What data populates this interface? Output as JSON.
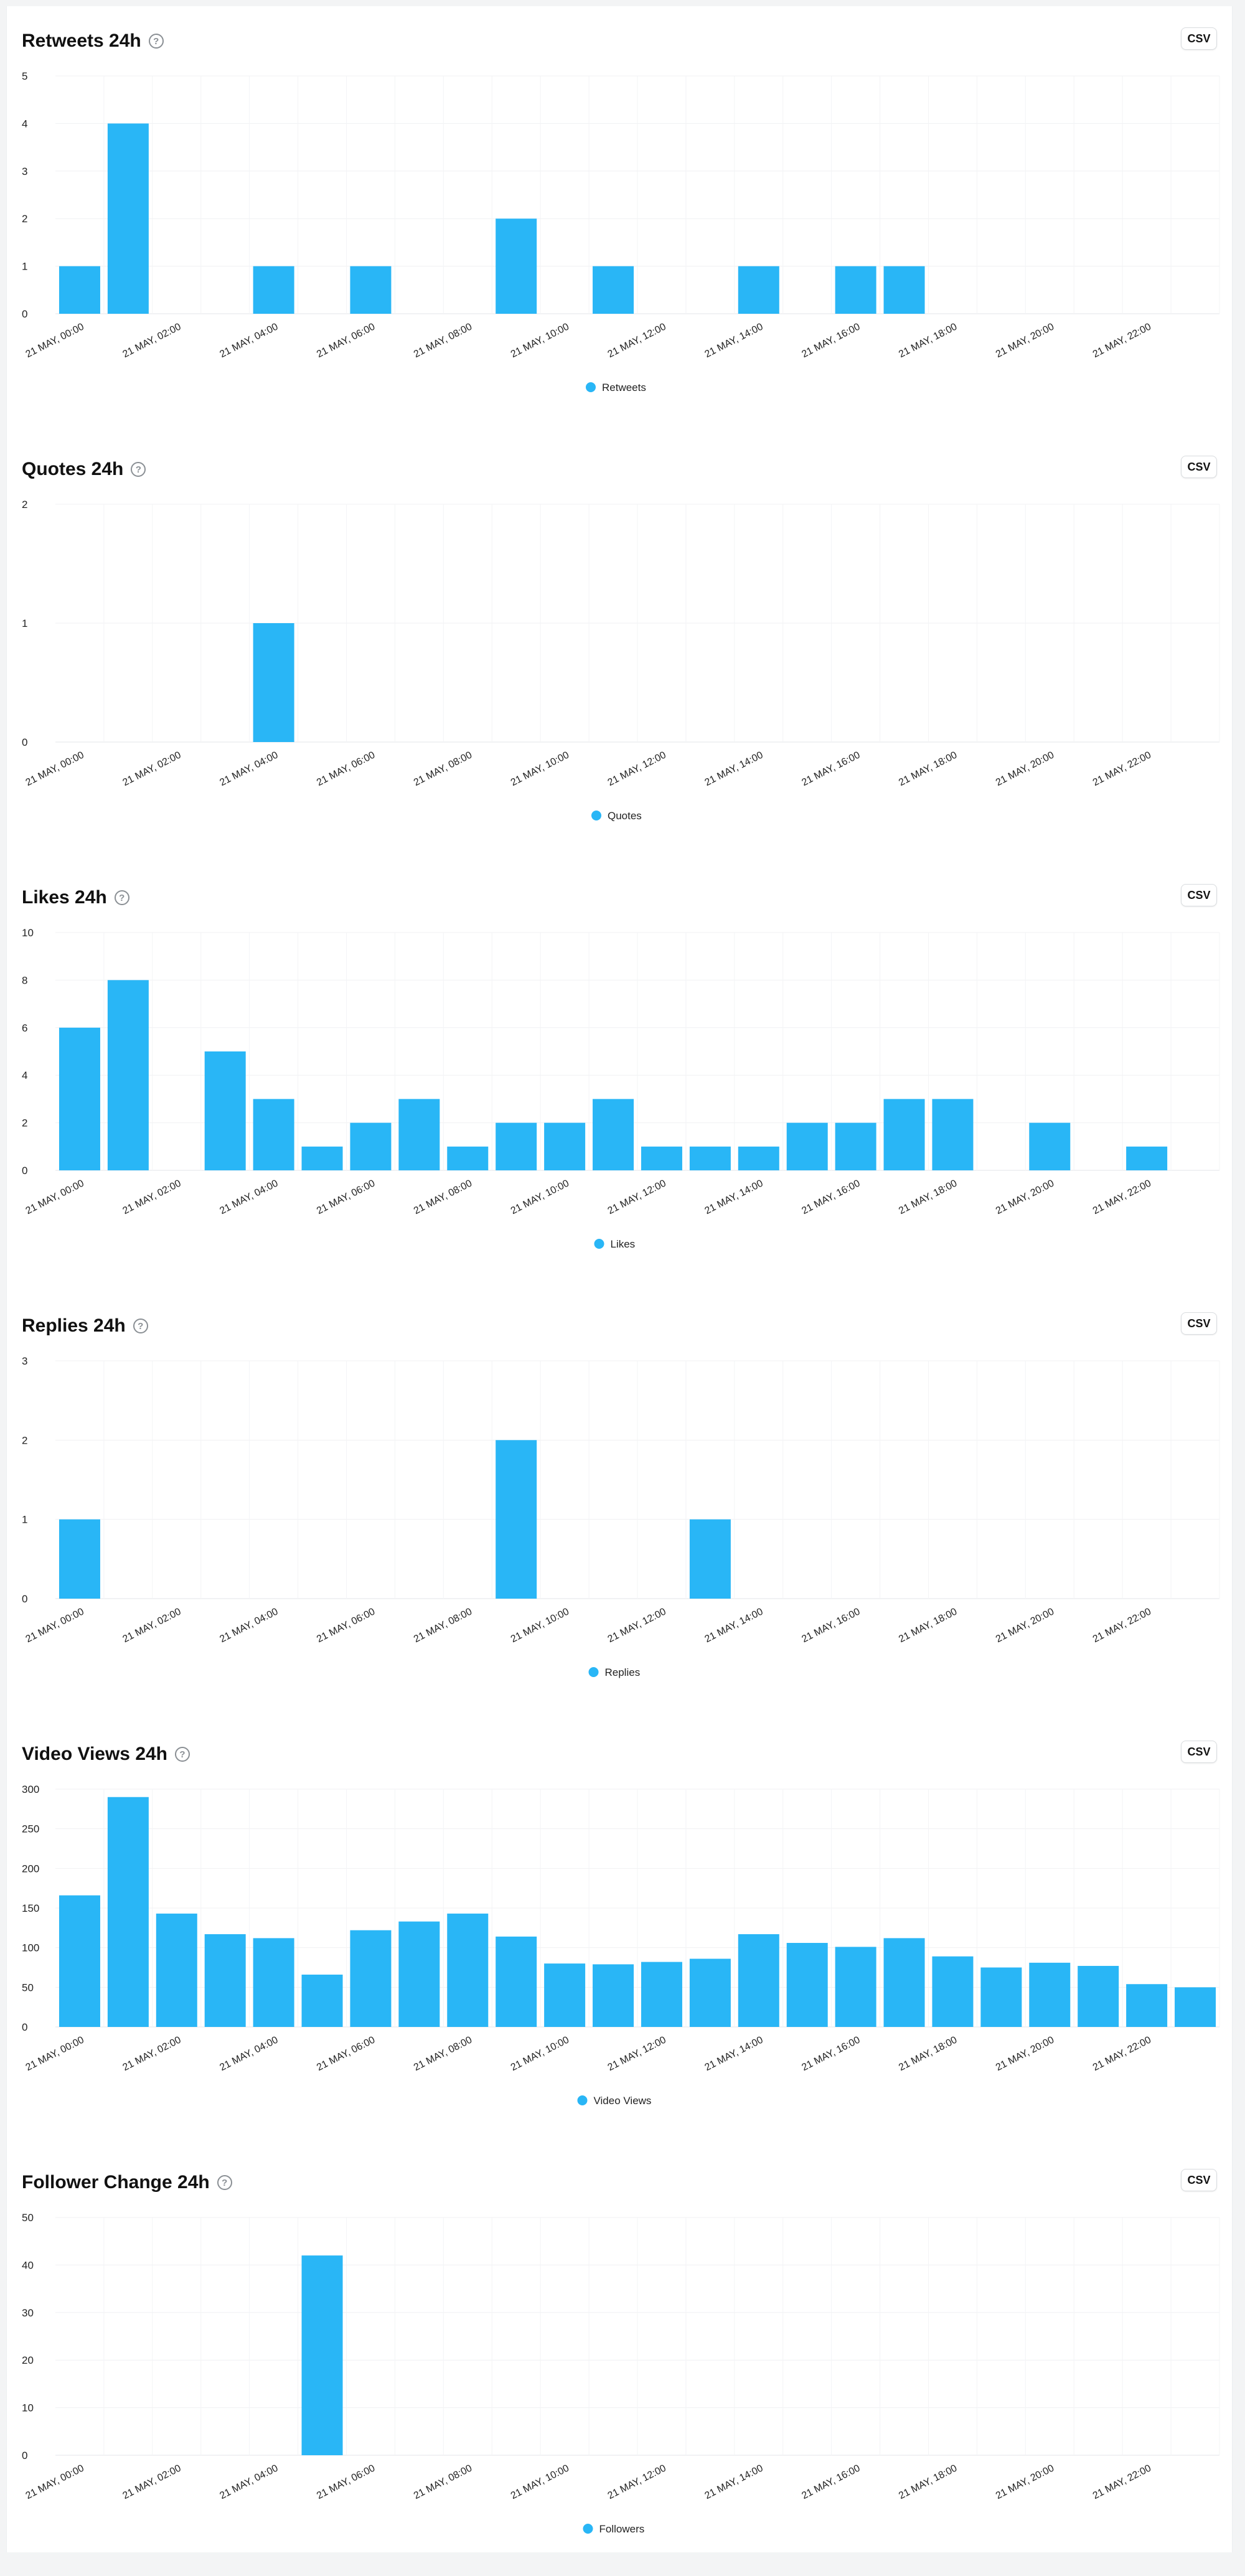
{
  "csv_label": "CSV",
  "chart_data": [
    {
      "type": "bar",
      "title": "Retweets 24h",
      "ylim": [
        0,
        5
      ],
      "yticks": [
        0,
        1,
        2,
        3,
        4,
        5
      ],
      "categories": [
        "21 MAY, 00:00",
        "21 MAY, 01:00",
        "21 MAY, 02:00",
        "21 MAY, 03:00",
        "21 MAY, 04:00",
        "21 MAY, 05:00",
        "21 MAY, 06:00",
        "21 MAY, 07:00",
        "21 MAY, 08:00",
        "21 MAY, 09:00",
        "21 MAY, 10:00",
        "21 MAY, 11:00",
        "21 MAY, 12:00",
        "21 MAY, 13:00",
        "21 MAY, 14:00",
        "21 MAY, 15:00",
        "21 MAY, 16:00",
        "21 MAY, 17:00",
        "21 MAY, 18:00",
        "21 MAY, 19:00",
        "21 MAY, 20:00",
        "21 MAY, 21:00",
        "21 MAY, 22:00",
        "21 MAY, 23:00"
      ],
      "series": [
        {
          "name": "Retweets",
          "values": [
            1,
            4,
            0,
            0,
            1,
            0,
            1,
            0,
            0,
            2,
            0,
            1,
            0,
            0,
            1,
            0,
            1,
            1,
            0,
            0,
            0,
            0,
            0,
            0
          ]
        }
      ],
      "tick_labels": [
        "21 MAY, 00:00",
        "21 MAY, 02:00",
        "21 MAY, 04:00",
        "21 MAY, 06:00",
        "21 MAY, 08:00",
        "21 MAY, 10:00",
        "21 MAY, 12:00",
        "21 MAY, 14:00",
        "21 MAY, 16:00",
        "21 MAY, 18:00",
        "21 MAY, 20:00",
        "21 MAY, 22:00"
      ],
      "legend_position": "bottom",
      "grid": true,
      "color": "#29b6f6"
    },
    {
      "type": "bar",
      "title": "Quotes 24h",
      "ylim": [
        0,
        2
      ],
      "yticks": [
        0,
        1,
        2
      ],
      "categories": [
        "21 MAY, 00:00",
        "21 MAY, 01:00",
        "21 MAY, 02:00",
        "21 MAY, 03:00",
        "21 MAY, 04:00",
        "21 MAY, 05:00",
        "21 MAY, 06:00",
        "21 MAY, 07:00",
        "21 MAY, 08:00",
        "21 MAY, 09:00",
        "21 MAY, 10:00",
        "21 MAY, 11:00",
        "21 MAY, 12:00",
        "21 MAY, 13:00",
        "21 MAY, 14:00",
        "21 MAY, 15:00",
        "21 MAY, 16:00",
        "21 MAY, 17:00",
        "21 MAY, 18:00",
        "21 MAY, 19:00",
        "21 MAY, 20:00",
        "21 MAY, 21:00",
        "21 MAY, 22:00",
        "21 MAY, 23:00"
      ],
      "series": [
        {
          "name": "Quotes",
          "values": [
            0,
            0,
            0,
            0,
            1,
            0,
            0,
            0,
            0,
            0,
            0,
            0,
            0,
            0,
            0,
            0,
            0,
            0,
            0,
            0,
            0,
            0,
            0,
            0
          ]
        }
      ],
      "tick_labels": [
        "21 MAY, 00:00",
        "21 MAY, 02:00",
        "21 MAY, 04:00",
        "21 MAY, 06:00",
        "21 MAY, 08:00",
        "21 MAY, 10:00",
        "21 MAY, 12:00",
        "21 MAY, 14:00",
        "21 MAY, 16:00",
        "21 MAY, 18:00",
        "21 MAY, 20:00",
        "21 MAY, 22:00"
      ],
      "legend_position": "bottom",
      "grid": true,
      "color": "#29b6f6"
    },
    {
      "type": "bar",
      "title": "Likes 24h",
      "ylim": [
        0,
        10
      ],
      "yticks": [
        0,
        2,
        4,
        6,
        8,
        10
      ],
      "categories": [
        "21 MAY, 00:00",
        "21 MAY, 01:00",
        "21 MAY, 02:00",
        "21 MAY, 03:00",
        "21 MAY, 04:00",
        "21 MAY, 05:00",
        "21 MAY, 06:00",
        "21 MAY, 07:00",
        "21 MAY, 08:00",
        "21 MAY, 09:00",
        "21 MAY, 10:00",
        "21 MAY, 11:00",
        "21 MAY, 12:00",
        "21 MAY, 13:00",
        "21 MAY, 14:00",
        "21 MAY, 15:00",
        "21 MAY, 16:00",
        "21 MAY, 17:00",
        "21 MAY, 18:00",
        "21 MAY, 19:00",
        "21 MAY, 20:00",
        "21 MAY, 21:00",
        "21 MAY, 22:00",
        "21 MAY, 23:00"
      ],
      "series": [
        {
          "name": "Likes",
          "values": [
            6,
            8,
            0,
            5,
            3,
            1,
            2,
            3,
            1,
            2,
            2,
            3,
            1,
            1,
            1,
            2,
            2,
            3,
            3,
            0,
            2,
            0,
            1,
            0
          ]
        }
      ],
      "tick_labels": [
        "21 MAY, 00:00",
        "21 MAY, 02:00",
        "21 MAY, 04:00",
        "21 MAY, 06:00",
        "21 MAY, 08:00",
        "21 MAY, 10:00",
        "21 MAY, 12:00",
        "21 MAY, 14:00",
        "21 MAY, 16:00",
        "21 MAY, 18:00",
        "21 MAY, 20:00",
        "21 MAY, 22:00"
      ],
      "legend_position": "bottom",
      "grid": true,
      "color": "#29b6f6"
    },
    {
      "type": "bar",
      "title": "Replies 24h",
      "ylim": [
        0,
        3
      ],
      "yticks": [
        0,
        1,
        2,
        3
      ],
      "categories": [
        "21 MAY, 00:00",
        "21 MAY, 01:00",
        "21 MAY, 02:00",
        "21 MAY, 03:00",
        "21 MAY, 04:00",
        "21 MAY, 05:00",
        "21 MAY, 06:00",
        "21 MAY, 07:00",
        "21 MAY, 08:00",
        "21 MAY, 09:00",
        "21 MAY, 10:00",
        "21 MAY, 11:00",
        "21 MAY, 12:00",
        "21 MAY, 13:00",
        "21 MAY, 14:00",
        "21 MAY, 15:00",
        "21 MAY, 16:00",
        "21 MAY, 17:00",
        "21 MAY, 18:00",
        "21 MAY, 19:00",
        "21 MAY, 20:00",
        "21 MAY, 21:00",
        "21 MAY, 22:00",
        "21 MAY, 23:00"
      ],
      "series": [
        {
          "name": "Replies",
          "values": [
            1,
            0,
            0,
            0,
            0,
            0,
            0,
            0,
            0,
            2,
            0,
            0,
            0,
            1,
            0,
            0,
            0,
            0,
            0,
            0,
            0,
            0,
            0,
            0
          ]
        }
      ],
      "tick_labels": [
        "21 MAY, 00:00",
        "21 MAY, 02:00",
        "21 MAY, 04:00",
        "21 MAY, 06:00",
        "21 MAY, 08:00",
        "21 MAY, 10:00",
        "21 MAY, 12:00",
        "21 MAY, 14:00",
        "21 MAY, 16:00",
        "21 MAY, 18:00",
        "21 MAY, 20:00",
        "21 MAY, 22:00"
      ],
      "legend_position": "bottom",
      "grid": true,
      "color": "#29b6f6"
    },
    {
      "type": "bar",
      "title": "Video Views 24h",
      "ylim": [
        0,
        300
      ],
      "yticks": [
        0,
        50,
        100,
        150,
        200,
        250,
        300
      ],
      "categories": [
        "21 MAY, 00:00",
        "21 MAY, 01:00",
        "21 MAY, 02:00",
        "21 MAY, 03:00",
        "21 MAY, 04:00",
        "21 MAY, 05:00",
        "21 MAY, 06:00",
        "21 MAY, 07:00",
        "21 MAY, 08:00",
        "21 MAY, 09:00",
        "21 MAY, 10:00",
        "21 MAY, 11:00",
        "21 MAY, 12:00",
        "21 MAY, 13:00",
        "21 MAY, 14:00",
        "21 MAY, 15:00",
        "21 MAY, 16:00",
        "21 MAY, 17:00",
        "21 MAY, 18:00",
        "21 MAY, 19:00",
        "21 MAY, 20:00",
        "21 MAY, 21:00",
        "21 MAY, 22:00",
        "21 MAY, 23:00"
      ],
      "series": [
        {
          "name": "Video Views",
          "values": [
            166,
            290,
            143,
            117,
            112,
            66,
            122,
            133,
            143,
            114,
            80,
            79,
            82,
            86,
            117,
            106,
            101,
            112,
            89,
            75,
            81,
            77,
            54,
            50
          ]
        }
      ],
      "tick_labels": [
        "21 MAY, 00:00",
        "21 MAY, 02:00",
        "21 MAY, 04:00",
        "21 MAY, 06:00",
        "21 MAY, 08:00",
        "21 MAY, 10:00",
        "21 MAY, 12:00",
        "21 MAY, 14:00",
        "21 MAY, 16:00",
        "21 MAY, 18:00",
        "21 MAY, 20:00",
        "21 MAY, 22:00"
      ],
      "legend_position": "bottom",
      "grid": true,
      "color": "#29b6f6"
    },
    {
      "type": "bar",
      "title": "Follower Change 24h",
      "ylim": [
        0,
        50
      ],
      "yticks": [
        0,
        10,
        20,
        30,
        40,
        50
      ],
      "categories": [
        "21 MAY, 00:00",
        "21 MAY, 01:00",
        "21 MAY, 02:00",
        "21 MAY, 03:00",
        "21 MAY, 04:00",
        "21 MAY, 05:00",
        "21 MAY, 06:00",
        "21 MAY, 07:00",
        "21 MAY, 08:00",
        "21 MAY, 09:00",
        "21 MAY, 10:00",
        "21 MAY, 11:00",
        "21 MAY, 12:00",
        "21 MAY, 13:00",
        "21 MAY, 14:00",
        "21 MAY, 15:00",
        "21 MAY, 16:00",
        "21 MAY, 17:00",
        "21 MAY, 18:00",
        "21 MAY, 19:00",
        "21 MAY, 20:00",
        "21 MAY, 21:00",
        "21 MAY, 22:00",
        "21 MAY, 23:00"
      ],
      "series": [
        {
          "name": "Followers",
          "values": [
            0,
            0,
            0,
            0,
            0,
            42,
            0,
            0,
            0,
            0,
            0,
            0,
            0,
            0,
            0,
            0,
            0,
            0,
            0,
            0,
            0,
            0,
            0,
            0
          ]
        }
      ],
      "tick_labels": [
        "21 MAY, 00:00",
        "21 MAY, 02:00",
        "21 MAY, 04:00",
        "21 MAY, 06:00",
        "21 MAY, 08:00",
        "21 MAY, 10:00",
        "21 MAY, 12:00",
        "21 MAY, 14:00",
        "21 MAY, 16:00",
        "21 MAY, 18:00",
        "21 MAY, 20:00",
        "21 MAY, 22:00"
      ],
      "legend_position": "bottom",
      "grid": true,
      "color": "#29b6f6"
    }
  ]
}
